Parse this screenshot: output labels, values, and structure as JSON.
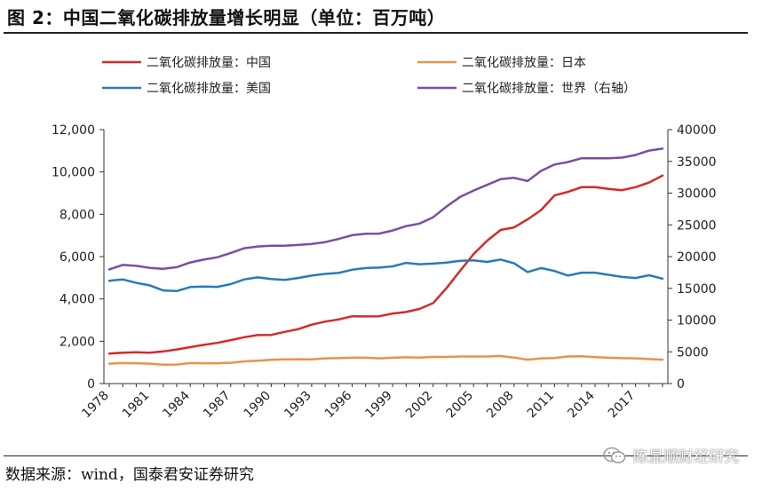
{
  "header": {
    "title": "图 2：中国二氧化碳排放量增长明显（单位：百万吨）"
  },
  "footer": {
    "source": "数据来源：wind，国泰君安证券研究",
    "watermark": "陈显顺财经研究"
  },
  "chart_data": {
    "type": "line",
    "title": "",
    "xlabel": "",
    "ylabel": "",
    "x": [
      1978,
      1979,
      1980,
      1981,
      1982,
      1983,
      1984,
      1985,
      1986,
      1987,
      1988,
      1989,
      1990,
      1991,
      1992,
      1993,
      1994,
      1995,
      1996,
      1997,
      1998,
      1999,
      2000,
      2001,
      2002,
      2003,
      2004,
      2005,
      2006,
      2007,
      2008,
      2009,
      2010,
      2011,
      2012,
      2013,
      2014,
      2015,
      2016,
      2017,
      2018,
      2019
    ],
    "x_ticks": [
      "1978",
      "1981",
      "1984",
      "1987",
      "1990",
      "1993",
      "1996",
      "1999",
      "2002",
      "2005",
      "2008",
      "2011",
      "2014",
      "2017"
    ],
    "y_left": {
      "lim": [
        0,
        12000
      ],
      "ticks": [
        "0",
        "2,000",
        "4,000",
        "6,000",
        "8,000",
        "10,000",
        "12,000"
      ]
    },
    "y_right": {
      "lim": [
        0,
        40000
      ],
      "ticks": [
        "0",
        "5000",
        "10000",
        "15000",
        "20000",
        "25000",
        "30000",
        "35000",
        "40000"
      ]
    },
    "grid": false,
    "legend_position": "top",
    "series": [
      {
        "name": "二氧化碳排放量：中国",
        "axis": "left",
        "color": "#d42a2a",
        "values": [
          1420,
          1460,
          1480,
          1460,
          1520,
          1610,
          1720,
          1830,
          1920,
          2050,
          2190,
          2290,
          2300,
          2440,
          2570,
          2780,
          2930,
          3030,
          3180,
          3170,
          3180,
          3310,
          3380,
          3530,
          3800,
          4520,
          5330,
          6120,
          6750,
          7260,
          7380,
          7760,
          8200,
          8890,
          9060,
          9280,
          9280,
          9200,
          9140,
          9280,
          9500,
          9830
        ]
      },
      {
        "name": "二氧化碳排放量：日本",
        "axis": "left",
        "color": "#e8934a",
        "values": [
          940,
          970,
          960,
          940,
          890,
          900,
          970,
          960,
          960,
          980,
          1050,
          1080,
          1120,
          1140,
          1150,
          1140,
          1190,
          1200,
          1220,
          1220,
          1190,
          1220,
          1240,
          1230,
          1260,
          1260,
          1280,
          1280,
          1280,
          1300,
          1230,
          1130,
          1190,
          1210,
          1280,
          1290,
          1250,
          1220,
          1200,
          1190,
          1160,
          1130
        ]
      },
      {
        "name": "二氧化碳排放量：美国",
        "axis": "left",
        "color": "#2a7ab8",
        "values": [
          4860,
          4920,
          4760,
          4640,
          4400,
          4370,
          4560,
          4580,
          4570,
          4700,
          4920,
          5020,
          4940,
          4900,
          4990,
          5100,
          5180,
          5230,
          5380,
          5460,
          5480,
          5540,
          5700,
          5640,
          5670,
          5720,
          5800,
          5820,
          5750,
          5860,
          5680,
          5270,
          5460,
          5320,
          5100,
          5240,
          5240,
          5140,
          5040,
          4990,
          5120,
          4960
        ]
      },
      {
        "name": "二氧化碳排放量：世界（右轴）",
        "axis": "right",
        "color": "#7a4ea6",
        "values": [
          17980,
          18680,
          18540,
          18230,
          18090,
          18330,
          19070,
          19520,
          19890,
          20580,
          21310,
          21600,
          21700,
          21700,
          21830,
          21980,
          22280,
          22790,
          23370,
          23590,
          23620,
          24110,
          24800,
          25200,
          26200,
          27900,
          29400,
          30400,
          31300,
          32200,
          32400,
          31900,
          33500,
          34500,
          34900,
          35500,
          35500,
          35500,
          35600,
          36000,
          36700,
          37000
        ]
      }
    ]
  }
}
